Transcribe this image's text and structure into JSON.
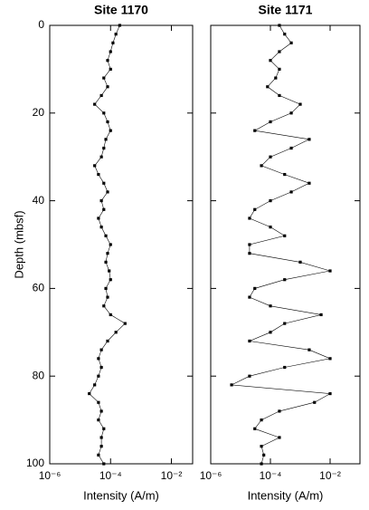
{
  "chart_data": [
    {
      "type": "scatter",
      "title": "Site 1170",
      "x_label": "Intensity (A/m)",
      "y_label": "Depth (mbsf)",
      "log_x": true,
      "y_reversed": true,
      "ytick_labels": true,
      "color": "#000000",
      "xlim": [
        1e-06,
        0.05
      ],
      "ylim": [
        0,
        100
      ],
      "xticks": [
        {
          "value": 1e-06,
          "label": "10⁻⁶"
        },
        {
          "value": 0.0001,
          "label": "10⁻⁴"
        },
        {
          "value": 0.01,
          "label": "10⁻²"
        }
      ],
      "yticks": [
        0,
        20,
        40,
        60,
        80,
        100
      ],
      "y": [
        0,
        2,
        4,
        6,
        8,
        10,
        12,
        14,
        16,
        18,
        20,
        22,
        24,
        26,
        28,
        30,
        32,
        34,
        36,
        38,
        40,
        42,
        44,
        46,
        48,
        50,
        52,
        54,
        56,
        58,
        60,
        62,
        64,
        66,
        68,
        70,
        72,
        74,
        76,
        78,
        80,
        82,
        84,
        86,
        88,
        90,
        92,
        94,
        96,
        98,
        100
      ],
      "x": [
        0.0002,
        0.00015,
        0.00012,
        0.0001,
        8e-05,
        0.0001,
        6e-05,
        8e-05,
        5e-05,
        3e-05,
        6e-05,
        8e-05,
        0.0001,
        7e-05,
        6e-05,
        5e-05,
        3e-05,
        4e-05,
        6e-05,
        8e-05,
        5e-05,
        6e-05,
        4e-05,
        5e-05,
        7e-05,
        0.0001,
        8e-05,
        7e-05,
        9e-05,
        0.0001,
        7e-05,
        8e-05,
        6e-05,
        0.0001,
        0.0003,
        0.00015,
        8e-05,
        5e-05,
        4e-05,
        5e-05,
        4e-05,
        3e-05,
        2e-05,
        4e-05,
        5e-05,
        4e-05,
        6e-05,
        5e-05,
        5e-05,
        4e-05,
        6e-05
      ]
    },
    {
      "type": "scatter",
      "title": "Site 1171",
      "x_label": "Intensity (A/m)",
      "log_x": true,
      "y_reversed": true,
      "ytick_labels": false,
      "color": "#000000",
      "xlim": [
        1e-06,
        0.1
      ],
      "ylim": [
        0,
        100
      ],
      "xticks": [
        {
          "value": 1e-06,
          "label": "10⁻⁶"
        },
        {
          "value": 0.0001,
          "label": "10⁻⁴"
        },
        {
          "value": 0.01,
          "label": "10⁻²"
        }
      ],
      "yticks": [
        0,
        20,
        40,
        60,
        80,
        100
      ],
      "y": [
        0,
        2,
        4,
        6,
        8,
        10,
        12,
        14,
        16,
        18,
        20,
        22,
        24,
        26,
        28,
        30,
        32,
        34,
        36,
        38,
        40,
        42,
        44,
        46,
        48,
        50,
        52,
        54,
        56,
        58,
        60,
        62,
        64,
        66,
        68,
        70,
        72,
        74,
        76,
        78,
        80,
        82,
        84,
        86,
        88,
        90,
        92,
        94,
        96,
        98,
        100
      ],
      "x": [
        0.0002,
        0.0003,
        0.0005,
        0.0002,
        0.0001,
        0.0002,
        0.00015,
        8e-05,
        0.0002,
        0.001,
        0.0005,
        0.0001,
        3e-05,
        0.002,
        0.0005,
        0.0001,
        5e-05,
        0.0003,
        0.002,
        0.0005,
        0.0001,
        3e-05,
        2e-05,
        0.0001,
        0.0003,
        2e-05,
        2e-05,
        0.001,
        0.01,
        0.0003,
        3e-05,
        2e-05,
        0.0001,
        0.005,
        0.0003,
        0.0001,
        2e-05,
        0.002,
        0.01,
        0.0003,
        2e-05,
        5e-06,
        0.01,
        0.003,
        0.0002,
        5e-05,
        3e-05,
        0.0002,
        5e-05,
        6e-05,
        5e-05
      ]
    }
  ]
}
